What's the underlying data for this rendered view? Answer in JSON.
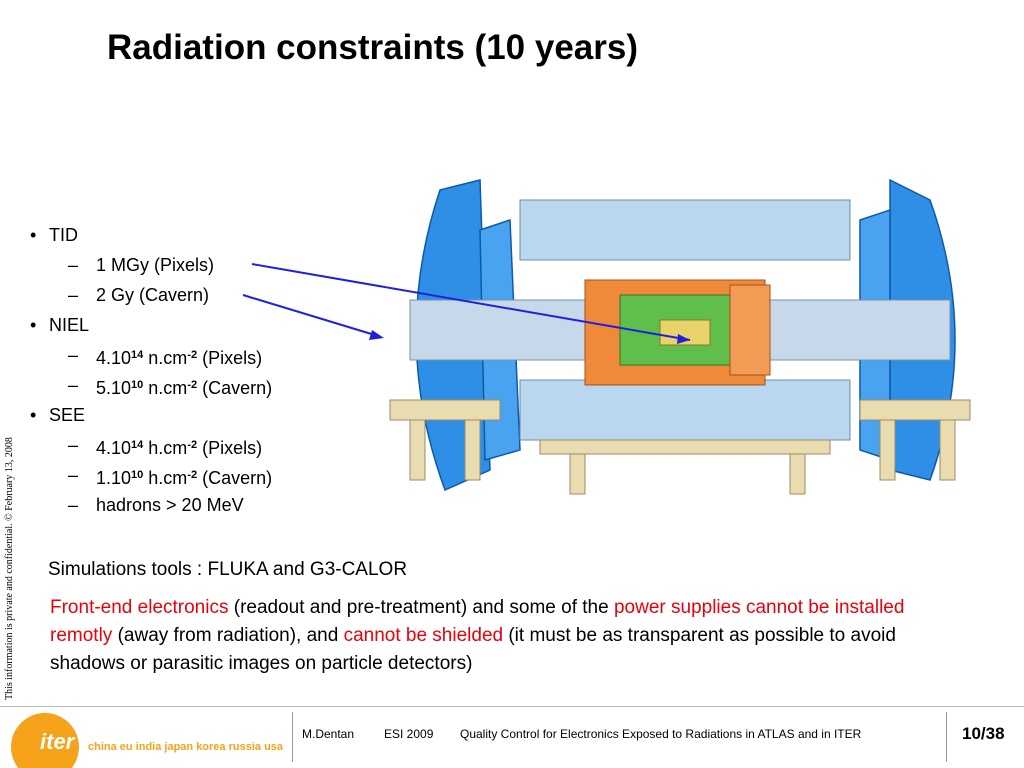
{
  "title": "Radiation constraints (10 years)",
  "side_note": "This information is private and confidential.  © February 13, 2008",
  "bullets": [
    {
      "text": "TID",
      "items": [
        {
          "parts": [
            {
              "text": "1 MGy (Pixels)"
            }
          ]
        },
        {
          "parts": [
            {
              "text": "2 Gy (Cavern)"
            }
          ]
        }
      ]
    },
    {
      "text": "NIEL",
      "items": [
        {
          "parts": [
            {
              "text": "4.10"
            },
            {
              "text": "14",
              "sup": true
            },
            {
              "text": " n.cm"
            },
            {
              "text": "-2",
              "sup": true
            },
            {
              "text": " (Pixels)"
            }
          ]
        },
        {
          "parts": [
            {
              "text": "5.10"
            },
            {
              "text": "10",
              "sup": true
            },
            {
              "text": " n.cm"
            },
            {
              "text": "-2",
              "sup": true
            },
            {
              "text": " (Cavern)"
            }
          ]
        }
      ]
    },
    {
      "text": "SEE",
      "items": [
        {
          "parts": [
            {
              "text": "4.10"
            },
            {
              "text": "14",
              "sup": true
            },
            {
              "text": " h.cm"
            },
            {
              "text": "-2",
              "sup": true
            },
            {
              "text": " (Pixels)"
            }
          ]
        },
        {
          "parts": [
            {
              "text": "1.10"
            },
            {
              "text": "10",
              "sup": true
            },
            {
              "text": " h.cm"
            },
            {
              "text": "-2",
              "sup": true
            },
            {
              "text": " (Cavern)"
            }
          ]
        },
        {
          "parts": [
            {
              "text": "hadrons > 20 MeV"
            }
          ]
        }
      ]
    }
  ],
  "simulations": "Simulations tools : FLUKA and G3-CALOR",
  "paragraph": [
    {
      "text": "Front-end electronics",
      "red": true
    },
    {
      "text": " (readout and pre-treatment) and some of the "
    },
    {
      "text": "power supplies cannot be installed remotly",
      "red": true
    },
    {
      "text": " (away from radiation), and "
    },
    {
      "text": "cannot be shielded",
      "red": true
    },
    {
      "text": " (it must be as transparent as possible to avoid shadows or parasitic images on particle detectors)"
    }
  ],
  "footer": {
    "logo": "iter",
    "partners": "china eu india japan korea russia usa",
    "author": "M.Dentan",
    "event": "ESI 2009",
    "talk": "Quality Control for Electronics Exposed to Radiations in ATLAS and in ITER",
    "page": "10/38"
  }
}
